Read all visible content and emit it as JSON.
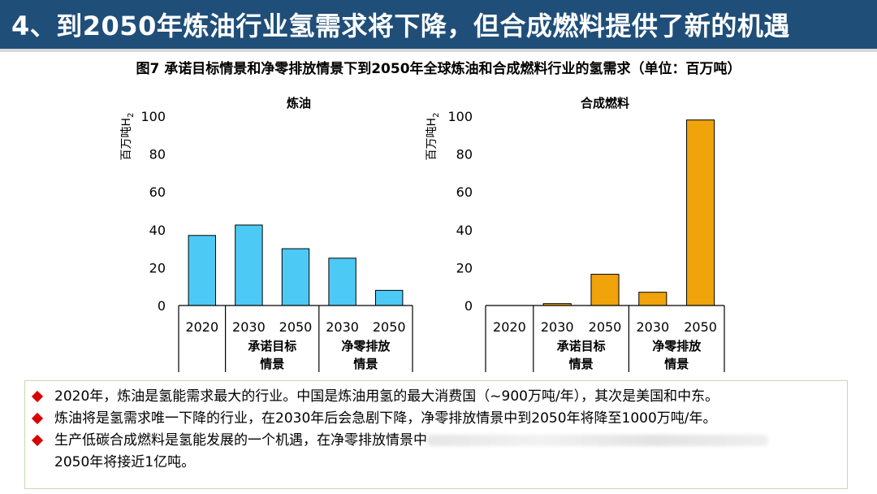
{
  "header": {
    "title": "4、到2050年炼油行业氢需求将下降，但合成燃料提供了新的机遇"
  },
  "figure": {
    "title": "图7 承诺目标情景和净零排放情景下到2050年全球炼油和合成燃料行业的氢需求（单位：百万吨）"
  },
  "colors": {
    "header_bg": "#1f4e79",
    "refining_bar": "#4dc9f6",
    "synfuel_bar": "#f0a30a",
    "bullet": "#d80000"
  },
  "chart_data": [
    {
      "type": "bar",
      "title": "炼油",
      "ylabel": "百万吨H",
      "ylabel_sub": "2",
      "ylim": [
        0,
        100
      ],
      "yticks": [
        0,
        20,
        40,
        60,
        80,
        100
      ],
      "categories": [
        "2020",
        "2030",
        "2050",
        "2030",
        "2050"
      ],
      "groups": [
        {
          "label": "",
          "span": [
            0,
            0
          ]
        },
        {
          "label_line1": "承诺目标",
          "label_line2": "情景",
          "span": [
            1,
            2
          ]
        },
        {
          "label_line1": "净零排放",
          "label_line2": "情景",
          "span": [
            3,
            4
          ]
        }
      ],
      "values": [
        37,
        42.5,
        30,
        25,
        8
      ],
      "grid": false
    },
    {
      "type": "bar",
      "title": "合成燃料",
      "ylabel": "百万吨H",
      "ylabel_sub": "2",
      "ylim": [
        0,
        100
      ],
      "yticks": [
        0,
        20,
        40,
        60,
        80,
        100
      ],
      "categories": [
        "2020",
        "2030",
        "2050",
        "2030",
        "2050"
      ],
      "groups": [
        {
          "label": "",
          "span": [
            0,
            0
          ]
        },
        {
          "label_line1": "承诺目标",
          "label_line2": "情景",
          "span": [
            1,
            2
          ]
        },
        {
          "label_line1": "净零排放",
          "label_line2": "情景",
          "span": [
            3,
            4
          ]
        }
      ],
      "values": [
        0,
        1,
        16.5,
        7,
        98
      ],
      "grid": false
    }
  ],
  "notes": [
    {
      "text": "2020年，炼油是氢能需求最大的行业。中国是炼油用氢的最大消费国（~900万吨/年），其次是美国和中东。"
    },
    {
      "text": "炼油将是氢需求唯一下降的行业，在2030年后会急剧下降，净零排放情景中到2050年将降至1000万吨/年。"
    },
    {
      "text_before": "生产低碳合成燃料是氢能发展的一个机遇，在净零排放情景中",
      "text_after": "2050年将接近1亿吨。"
    }
  ]
}
